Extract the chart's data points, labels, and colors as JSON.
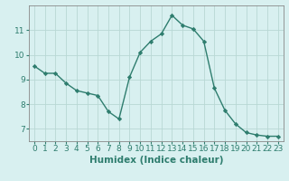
{
  "x": [
    0,
    1,
    2,
    3,
    4,
    5,
    6,
    7,
    8,
    9,
    10,
    11,
    12,
    13,
    14,
    15,
    16,
    17,
    18,
    19,
    20,
    21,
    22,
    23
  ],
  "y": [
    9.55,
    9.25,
    9.25,
    8.85,
    8.55,
    8.45,
    8.35,
    7.7,
    7.4,
    9.1,
    10.1,
    10.55,
    10.85,
    11.6,
    11.2,
    11.05,
    10.55,
    8.65,
    7.75,
    7.2,
    6.85,
    6.75,
    6.7,
    6.7
  ],
  "line_color": "#2e7d6e",
  "marker": "D",
  "marker_size": 2.2,
  "bg_color": "#d8f0f0",
  "grid_color": "#b8d8d4",
  "xlabel": "Humidex (Indice chaleur)",
  "xlabel_fontsize": 7.5,
  "tick_fontsize": 6.5,
  "ylim": [
    6.5,
    12.0
  ],
  "xlim": [
    -0.5,
    23.5
  ],
  "yticks": [
    7,
    8,
    9,
    10,
    11
  ],
  "xticks": [
    0,
    1,
    2,
    3,
    4,
    5,
    6,
    7,
    8,
    9,
    10,
    11,
    12,
    13,
    14,
    15,
    16,
    17,
    18,
    19,
    20,
    21,
    22,
    23
  ],
  "figsize": [
    3.2,
    2.0
  ],
  "dpi": 100
}
